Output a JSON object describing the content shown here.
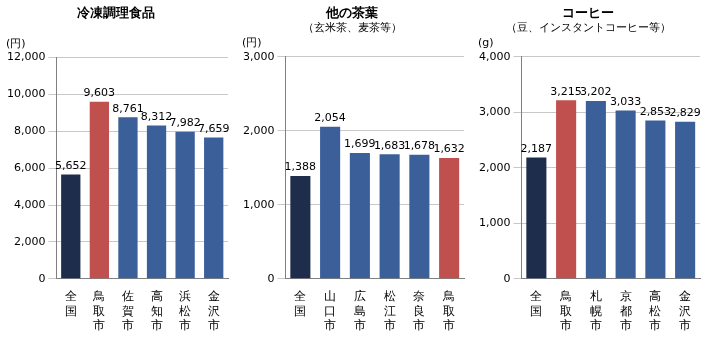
{
  "chart_data": [
    {
      "type": "bar",
      "title": "冷凍調理食品",
      "ylabel": "(円)",
      "categories": [
        "全国",
        "鳥取市",
        "佐賀市",
        "高知市",
        "浜松市",
        "金沢市"
      ],
      "values": [
        5652,
        9603,
        8761,
        8312,
        7982,
        7659
      ],
      "value_labels": [
        "5,652",
        "9,603",
        "8,761",
        "8,312",
        "7,982",
        "7,659"
      ],
      "colors": [
        "#1f2d4d",
        "#c0504d",
        "#3b5f99",
        "#3b5f99",
        "#3b5f99",
        "#3b5f99"
      ],
      "ylim": [
        0,
        12000
      ],
      "yticks": [
        0,
        {
          "value": 2000,
          "label": "2,000"
        },
        {
          "value": 4000,
          "label": "4,000"
        },
        {
          "value": 6000,
          "label": "6,000"
        },
        {
          "value": 8000,
          "label": "8,000"
        },
        {
          "value": 10000,
          "label": "10,000"
        },
        {
          "value": 12000,
          "label": "12,000"
        }
      ],
      "grid": true,
      "data_labels": true
    },
    {
      "type": "bar",
      "title": "他の茶葉",
      "subtitle": "（玄米茶、麦茶等）",
      "ylabel": "(円)",
      "categories": [
        "全国",
        "山口市",
        "広島市",
        "松江市",
        "奈良市",
        "鳥取市"
      ],
      "values": [
        1388,
        2054,
        1699,
        1683,
        1678,
        1632
      ],
      "value_labels": [
        "1,388",
        "2,054",
        "1,699",
        "1,683",
        "1,678",
        "1,632"
      ],
      "colors": [
        "#1f2d4d",
        "#3b5f99",
        "#3b5f99",
        "#3b5f99",
        "#3b5f99",
        "#c0504d"
      ],
      "ylim": [
        0,
        3000
      ],
      "yticks": [
        0,
        {
          "value": 1000,
          "label": "1,000"
        },
        {
          "value": 2000,
          "label": "2,000"
        },
        {
          "value": 3000,
          "label": "3,000"
        }
      ],
      "grid": true,
      "data_labels": true
    },
    {
      "type": "bar",
      "title": "コーヒー",
      "subtitle": "（豆、インスタントコーヒー等）",
      "ylabel": "(g)",
      "categories": [
        "全国",
        "鳥取市",
        "札幌市",
        "京都市",
        "高松市",
        "金沢市"
      ],
      "values": [
        2187,
        3215,
        3202,
        3033,
        2853,
        2829
      ],
      "value_labels": [
        "2,187",
        "3,215",
        "3,202",
        "3,033",
        "2,853",
        "2,829"
      ],
      "colors": [
        "#1f2d4d",
        "#c0504d",
        "#3b5f99",
        "#3b5f99",
        "#3b5f99",
        "#3b5f99"
      ],
      "ylim": [
        0,
        4000
      ],
      "yticks": [
        0,
        {
          "value": 1000,
          "label": "1,000"
        },
        {
          "value": 2000,
          "label": "2,000"
        },
        {
          "value": 3000,
          "label": "3,000"
        },
        {
          "value": 4000,
          "label": "4,000"
        }
      ],
      "grid": true,
      "data_labels": true
    }
  ]
}
